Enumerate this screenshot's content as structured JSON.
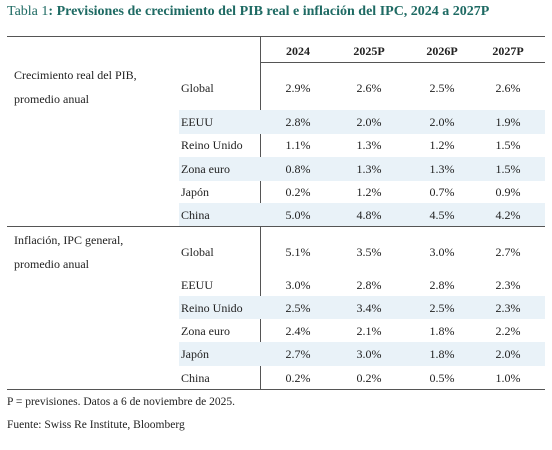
{
  "title": {
    "label": "Tabla 1",
    "colon": ":",
    "text": "Previsiones de crecimiento del PIB real e inflación del IPC, 2024 a 2027P"
  },
  "table": {
    "headers": [
      "2024",
      "2025P",
      "2026P",
      "2027P"
    ],
    "sections": [
      {
        "label_line1": "Crecimiento real del PIB,",
        "label_line2": "promedio anual",
        "rows": [
          {
            "region": "Global",
            "values": [
              "2.9%",
              "2.6%",
              "2.5%",
              "2.6%"
            ]
          },
          {
            "region": "EEUU",
            "values": [
              "2.8%",
              "2.0%",
              "2.0%",
              "1.9%"
            ]
          },
          {
            "region": "Reino Unido",
            "values": [
              "1.1%",
              "1.3%",
              "1.2%",
              "1.5%"
            ]
          },
          {
            "region": "Zona euro",
            "values": [
              "0.8%",
              "1.3%",
              "1.3%",
              "1.5%"
            ]
          },
          {
            "region": "Japón",
            "values": [
              "0.2%",
              "1.2%",
              "0.7%",
              "0.9%"
            ]
          },
          {
            "region": "China",
            "values": [
              "5.0%",
              "4.8%",
              "4.5%",
              "4.2%"
            ]
          }
        ]
      },
      {
        "label_line1": "Inflación, IPC general,",
        "label_line2": "promedio anual",
        "rows": [
          {
            "region": "Global",
            "values": [
              "5.1%",
              "3.5%",
              "3.0%",
              "2.7%"
            ]
          },
          {
            "region": "EEUU",
            "values": [
              "3.0%",
              "2.8%",
              "2.8%",
              "2.3%"
            ]
          },
          {
            "region": "Reino Unido",
            "values": [
              "2.5%",
              "3.4%",
              "2.5%",
              "2.3%"
            ]
          },
          {
            "region": "Zona euro",
            "values": [
              "2.4%",
              "2.1%",
              "1.8%",
              "2.2%"
            ]
          },
          {
            "region": "Japón",
            "values": [
              "2.7%",
              "3.0%",
              "1.8%",
              "2.0%"
            ]
          },
          {
            "region": "China",
            "values": [
              "0.2%",
              "0.2%",
              "0.5%",
              "1.0%"
            ]
          }
        ]
      }
    ]
  },
  "footnote": "P = previsiones. Datos a 6 de noviembre de 2025.",
  "source": "Fuente: Swiss Re Institute, Bloomberg",
  "colors": {
    "title": "#1e6a63",
    "row_shade": "#e9f2f8",
    "rule": "#555555"
  }
}
